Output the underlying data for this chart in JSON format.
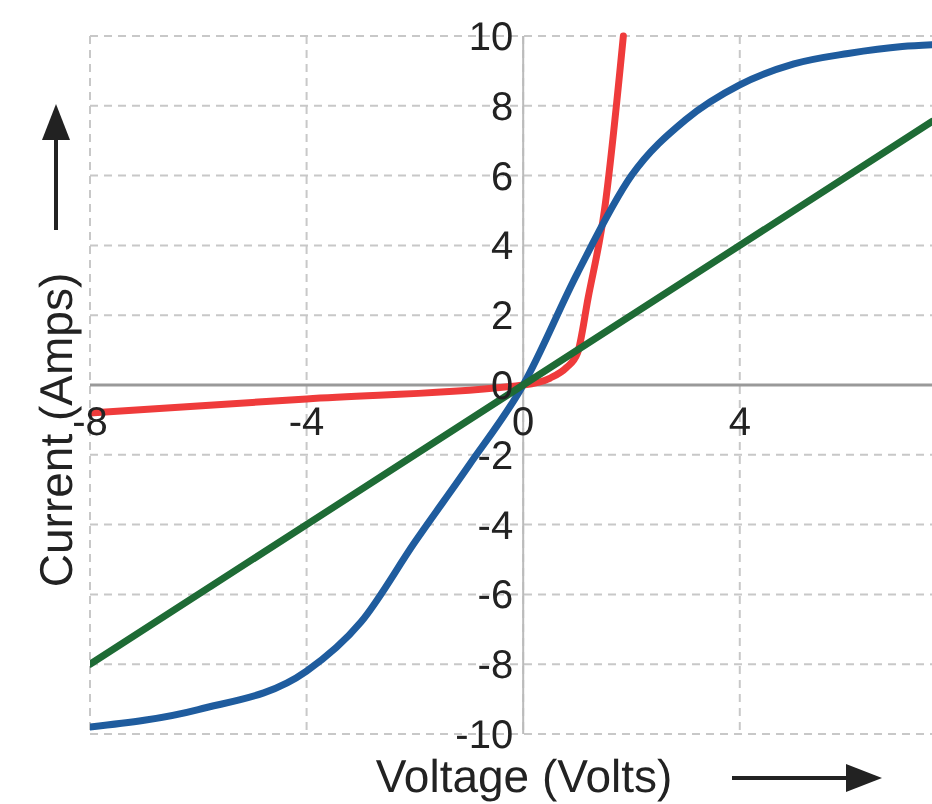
{
  "chart_data": {
    "type": "line",
    "xlabel": "Voltage (Volts)",
    "ylabel": "Current (Amps)",
    "xlim": [
      -8,
      7.55
    ],
    "ylim": [
      -10,
      10
    ],
    "xticks": [
      -8,
      -4,
      0,
      4
    ],
    "yticks": [
      -10,
      -8,
      -6,
      -4,
      -2,
      0,
      2,
      4,
      6,
      8,
      10
    ],
    "grid": true,
    "marker": "none",
    "line_style": "solid",
    "series": [
      {
        "color": "#ef3b3b",
        "x": [
          -8,
          -4,
          0,
          0.5,
          0.8,
          1,
          1.2,
          1.5,
          1.85
        ],
        "values": [
          -0.8,
          -0.4,
          0,
          0.2,
          0.5,
          0.9,
          2.5,
          5,
          10
        ]
      },
      {
        "color": "#1f5c9e",
        "x": [
          -8,
          -6,
          -4,
          -3,
          -2,
          -1,
          0,
          1,
          2,
          3,
          4,
          5,
          6,
          7,
          7.55
        ],
        "values": [
          -9.8,
          -9.3,
          -8.2,
          -6.8,
          -4.5,
          -2.3,
          0,
          3.2,
          6,
          7.6,
          8.6,
          9.2,
          9.5,
          9.7,
          9.75
        ]
      },
      {
        "color": "#1e6b35",
        "x": [
          -8,
          7.55
        ],
        "values": [
          -8,
          7.55
        ]
      }
    ]
  }
}
